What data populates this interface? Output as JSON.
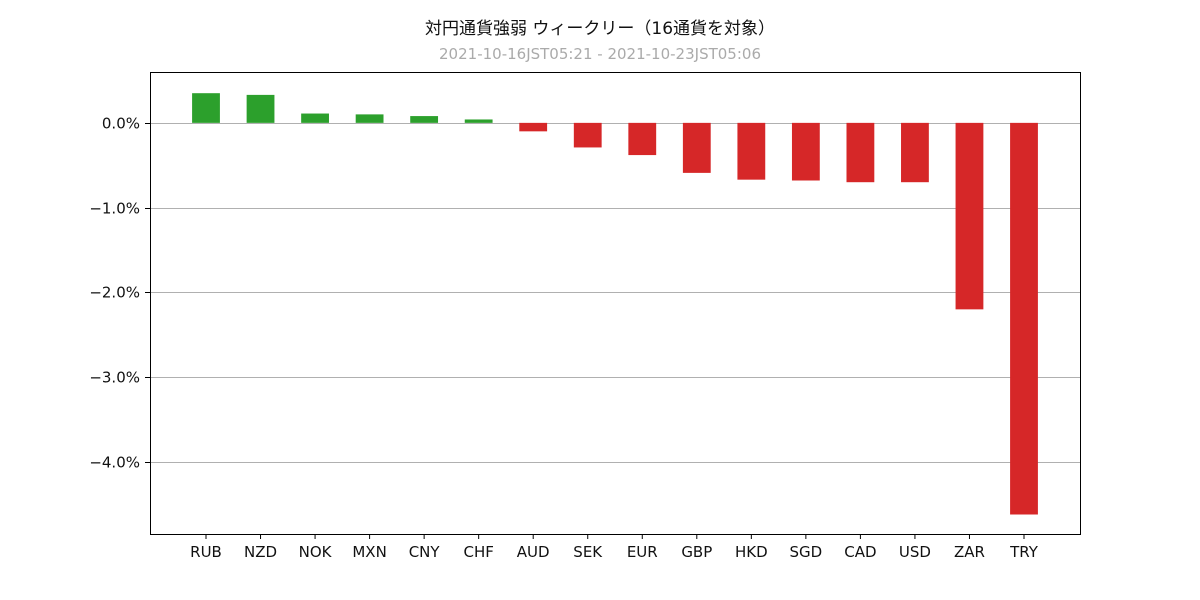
{
  "chart_data": {
    "type": "bar",
    "title": "対円通貨強弱 ウィークリー（16通貨を対象）",
    "subtitle": "2021-10-16JST05:21 - 2021-10-23JST05:06",
    "xlabel": "",
    "ylabel": "",
    "categories": [
      "RUB",
      "NZD",
      "NOK",
      "MXN",
      "CNY",
      "CHF",
      "AUD",
      "SEK",
      "EUR",
      "GBP",
      "HKD",
      "SGD",
      "CAD",
      "USD",
      "ZAR",
      "TRY"
    ],
    "values": [
      0.35,
      0.33,
      0.11,
      0.1,
      0.08,
      0.04,
      -0.1,
      -0.29,
      -0.38,
      -0.59,
      -0.67,
      -0.68,
      -0.7,
      -0.7,
      -2.2,
      -4.62
    ],
    "ylim": [
      -4.85,
      0.6
    ],
    "yticks": [
      0.0,
      -1.0,
      -2.0,
      -3.0,
      -4.0
    ],
    "ytick_labels": [
      "0.0%",
      "−1.0%",
      "−2.0%",
      "−3.0%",
      "−4.0%"
    ],
    "grid": "horizontal",
    "legend": "none",
    "colors": {
      "positive": "#2ca02c",
      "negative": "#d62728",
      "grid": "#b0b0b0"
    }
  }
}
